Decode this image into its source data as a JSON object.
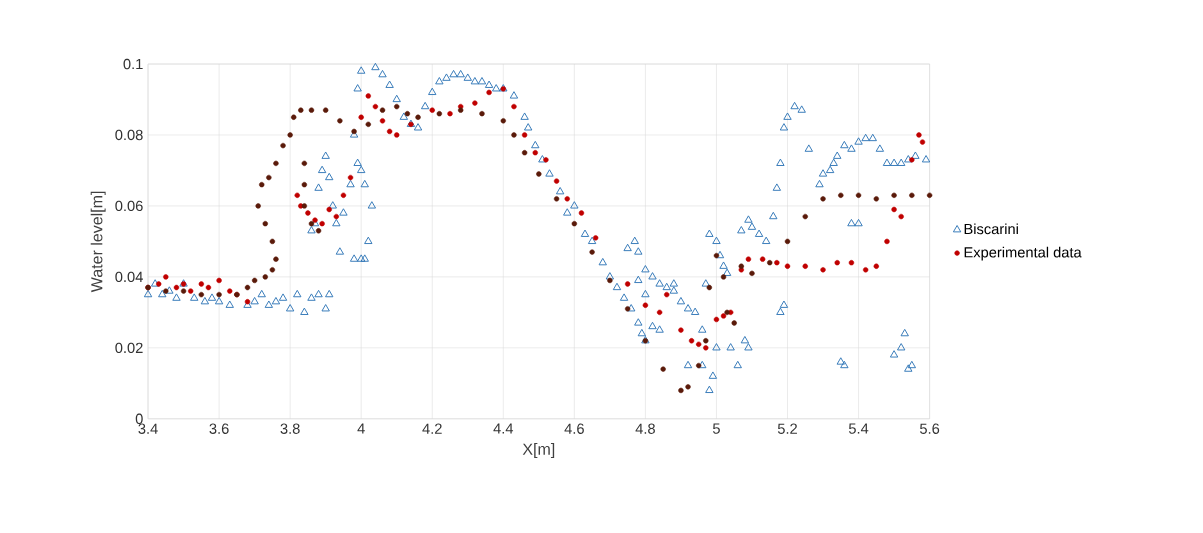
{
  "chart_data": {
    "type": "scatter",
    "xlabel": "X[m]",
    "ylabel": "Water level[m]",
    "xlim": [
      3.4,
      5.6
    ],
    "ylim": [
      0,
      0.1
    ],
    "xticks": [
      3.4,
      3.6,
      3.8,
      4,
      4.2,
      4.4,
      4.6,
      4.8,
      5,
      5.2,
      5.4,
      5.6
    ],
    "yticks": [
      0,
      0.02,
      0.04,
      0.06,
      0.08,
      0.1
    ],
    "grid": true,
    "legend": "right",
    "series": [
      {
        "name": "Biscarini",
        "color": "#2e75b6",
        "marker": "triangle",
        "x": [
          3.4,
          3.42,
          3.44,
          3.46,
          3.48,
          3.5,
          3.53,
          3.56,
          3.58,
          3.6,
          3.63,
          3.68,
          3.7,
          3.72,
          3.74,
          3.76,
          3.78,
          3.8,
          3.82,
          3.84,
          3.86,
          3.88,
          3.9,
          3.91,
          3.86,
          3.87,
          3.88,
          3.89,
          3.9,
          3.91,
          3.92,
          3.93,
          3.94,
          3.95,
          3.97,
          3.98,
          3.99,
          4.0,
          3.99,
          4.0,
          4.01,
          4.02,
          4.03,
          3.98,
          4.0,
          4.01,
          4.04,
          4.06,
          4.08,
          4.1,
          4.12,
          4.14,
          4.16,
          4.18,
          4.2,
          4.22,
          4.24,
          4.26,
          4.28,
          4.3,
          4.32,
          4.34,
          4.36,
          4.38,
          4.4,
          4.43,
          4.46,
          4.47,
          4.49,
          4.51,
          4.53,
          4.56,
          4.58,
          4.6,
          4.63,
          4.65,
          4.68,
          4.7,
          4.72,
          4.74,
          4.76,
          4.78,
          4.79,
          4.8,
          4.75,
          4.77,
          4.78,
          4.8,
          4.82,
          4.84,
          4.86,
          4.88,
          4.78,
          4.8,
          4.82,
          4.84,
          4.88,
          4.9,
          4.92,
          4.94,
          4.92,
          4.96,
          4.98,
          4.99,
          5.0,
          4.97,
          4.98,
          5.0,
          5.01,
          5.02,
          5.03,
          4.96,
          5.04,
          5.06,
          5.08,
          5.09,
          5.07,
          5.09,
          5.1,
          5.12,
          5.14,
          5.16,
          5.17,
          5.18,
          5.19,
          5.2,
          5.22,
          5.24,
          5.26,
          5.18,
          5.19,
          5.29,
          5.3,
          5.32,
          5.33,
          5.34,
          5.36,
          5.38,
          5.4,
          5.42,
          5.44,
          5.46,
          5.48,
          5.5,
          5.52,
          5.54,
          5.56,
          5.35,
          5.36,
          5.38,
          5.4,
          5.5,
          5.52,
          5.53,
          5.54,
          5.55,
          5.59
        ],
        "values": [
          0.035,
          0.038,
          0.035,
          0.036,
          0.034,
          0.038,
          0.034,
          0.033,
          0.034,
          0.033,
          0.032,
          0.032,
          0.033,
          0.035,
          0.032,
          0.033,
          0.034,
          0.031,
          0.035,
          0.03,
          0.034,
          0.035,
          0.031,
          0.035,
          0.053,
          0.055,
          0.065,
          0.07,
          0.074,
          0.068,
          0.06,
          0.055,
          0.047,
          0.058,
          0.066,
          0.08,
          0.093,
          0.098,
          0.072,
          0.07,
          0.066,
          0.05,
          0.06,
          0.045,
          0.045,
          0.045,
          0.099,
          0.097,
          0.094,
          0.09,
          0.085,
          0.083,
          0.082,
          0.088,
          0.092,
          0.095,
          0.096,
          0.097,
          0.097,
          0.096,
          0.095,
          0.095,
          0.094,
          0.093,
          0.093,
          0.091,
          0.085,
          0.082,
          0.077,
          0.073,
          0.069,
          0.064,
          0.058,
          0.06,
          0.052,
          0.05,
          0.044,
          0.04,
          0.037,
          0.034,
          0.031,
          0.027,
          0.024,
          0.022,
          0.048,
          0.05,
          0.047,
          0.042,
          0.04,
          0.038,
          0.037,
          0.036,
          0.039,
          0.035,
          0.026,
          0.025,
          0.038,
          0.033,
          0.031,
          0.03,
          0.015,
          0.015,
          0.008,
          0.012,
          0.02,
          0.038,
          0.052,
          0.05,
          0.046,
          0.043,
          0.041,
          0.025,
          0.02,
          0.015,
          0.022,
          0.02,
          0.053,
          0.056,
          0.054,
          0.052,
          0.05,
          0.057,
          0.065,
          0.072,
          0.082,
          0.085,
          0.088,
          0.087,
          0.076,
          0.03,
          0.032,
          0.066,
          0.069,
          0.07,
          0.072,
          0.074,
          0.077,
          0.076,
          0.078,
          0.079,
          0.079,
          0.076,
          0.072,
          0.072,
          0.072,
          0.073,
          0.074,
          0.016,
          0.015,
          0.055,
          0.055,
          0.018,
          0.02,
          0.024,
          0.014,
          0.015,
          0.073
        ]
      },
      {
        "name": "Experimental data",
        "color": "#c00000",
        "marker": "circle",
        "x": [
          3.4,
          3.43,
          3.45,
          3.48,
          3.5,
          3.52,
          3.55,
          3.57,
          3.6,
          3.63,
          3.65,
          3.68,
          3.82,
          3.83,
          3.85,
          3.87,
          3.89,
          3.91,
          3.93,
          3.95,
          3.97,
          4.0,
          4.02,
          4.04,
          4.06,
          4.08,
          4.1,
          4.14,
          4.2,
          4.25,
          4.28,
          4.32,
          4.36,
          4.4,
          4.43,
          4.46,
          4.49,
          4.52,
          4.55,
          4.58,
          4.62,
          4.66,
          4.75,
          4.8,
          4.84,
          4.86,
          4.9,
          4.93,
          4.95,
          4.97,
          5.0,
          5.02,
          5.04,
          5.07,
          5.09,
          5.13,
          5.17,
          5.2,
          5.25,
          5.3,
          5.34,
          5.38,
          5.42,
          5.45,
          5.48,
          5.5,
          5.52,
          5.55,
          5.57,
          5.58
        ],
        "values": [
          0.037,
          0.038,
          0.04,
          0.037,
          0.038,
          0.036,
          0.038,
          0.037,
          0.039,
          0.036,
          0.035,
          0.033,
          0.063,
          0.06,
          0.058,
          0.056,
          0.055,
          0.059,
          0.057,
          0.063,
          0.068,
          0.085,
          0.091,
          0.088,
          0.084,
          0.081,
          0.08,
          0.083,
          0.087,
          0.086,
          0.088,
          0.089,
          0.092,
          0.093,
          0.088,
          0.08,
          0.075,
          0.073,
          0.067,
          0.062,
          0.058,
          0.051,
          0.038,
          0.032,
          0.03,
          0.035,
          0.025,
          0.022,
          0.021,
          0.02,
          0.028,
          0.029,
          0.03,
          0.042,
          0.045,
          0.045,
          0.044,
          0.043,
          0.043,
          0.042,
          0.044,
          0.044,
          0.042,
          0.043,
          0.05,
          0.059,
          0.057,
          0.073,
          0.08,
          0.078
        ]
      },
      {
        "color": "#5a1a0a",
        "marker": "circle",
        "x": [
          3.4,
          3.45,
          3.5,
          3.55,
          3.6,
          3.65,
          3.68,
          3.7,
          3.73,
          3.75,
          3.76,
          3.75,
          3.73,
          3.71,
          3.72,
          3.74,
          3.76,
          3.78,
          3.8,
          3.81,
          3.83,
          3.86,
          3.9,
          3.94,
          3.98,
          4.02,
          4.06,
          4.1,
          4.13,
          4.16,
          4.22,
          4.28,
          4.34,
          4.4,
          4.43,
          4.46,
          4.5,
          4.55,
          4.6,
          4.65,
          4.7,
          4.75,
          4.8,
          4.85,
          4.9,
          4.92,
          4.95,
          4.97,
          4.98,
          5.0,
          5.02,
          5.03,
          5.05,
          5.07,
          5.1,
          5.15,
          5.2,
          5.25,
          5.3,
          5.35,
          5.4,
          5.45,
          5.5,
          5.55,
          5.6,
          3.84,
          3.84,
          3.84,
          3.86,
          3.88
        ],
        "values": [
          0.037,
          0.036,
          0.036,
          0.035,
          0.035,
          0.035,
          0.037,
          0.039,
          0.04,
          0.042,
          0.045,
          0.05,
          0.055,
          0.06,
          0.066,
          0.068,
          0.072,
          0.077,
          0.08,
          0.085,
          0.087,
          0.087,
          0.087,
          0.084,
          0.081,
          0.083,
          0.087,
          0.088,
          0.086,
          0.085,
          0.086,
          0.087,
          0.086,
          0.084,
          0.08,
          0.075,
          0.069,
          0.062,
          0.055,
          0.047,
          0.039,
          0.031,
          0.022,
          0.014,
          0.008,
          0.009,
          0.015,
          0.022,
          0.037,
          0.046,
          0.04,
          0.03,
          0.027,
          0.043,
          0.041,
          0.044,
          0.05,
          0.057,
          0.062,
          0.063,
          0.063,
          0.062,
          0.063,
          0.063,
          0.063,
          0.072,
          0.066,
          0.06,
          0.055,
          0.053
        ]
      }
    ]
  }
}
